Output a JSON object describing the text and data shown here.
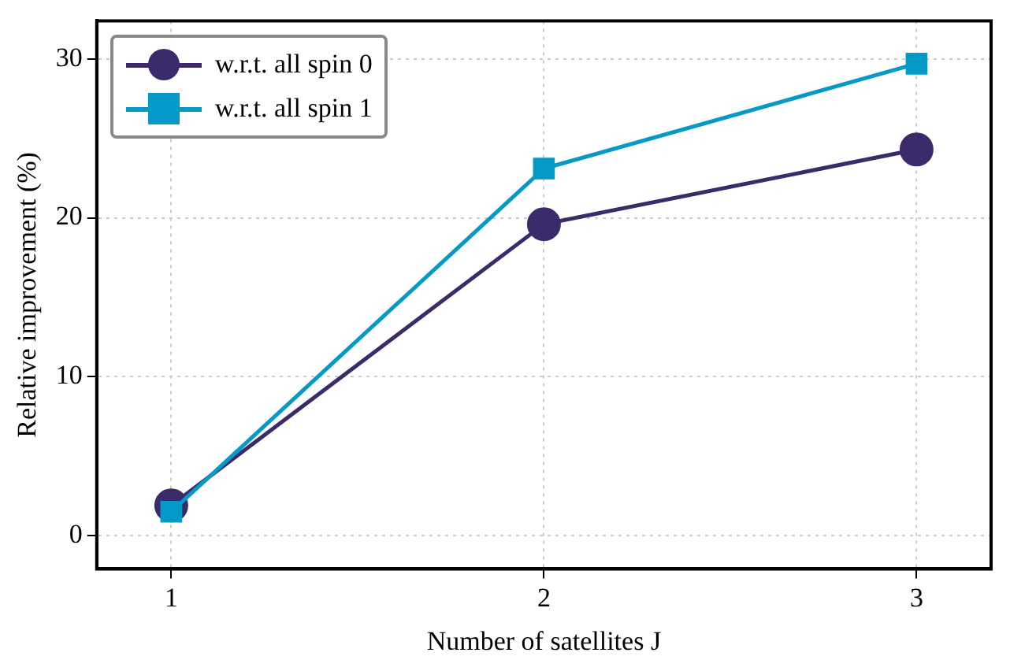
{
  "chart_data": {
    "type": "line",
    "xlabel": "Number of satellites J",
    "ylabel": "Relative improvement (%)",
    "x": [
      1,
      2,
      3
    ],
    "series": [
      {
        "name": "w.r.t. all spin 0",
        "color": "#3b2b6b",
        "marker": "circle",
        "values": [
          1.9,
          19.6,
          24.3
        ]
      },
      {
        "name": "w.r.t. all spin 1",
        "color": "#0499c6",
        "marker": "square",
        "values": [
          1.5,
          23.1,
          29.7
        ]
      }
    ],
    "xlim": [
      0.8,
      3.2
    ],
    "xticks": [
      1,
      2,
      3
    ],
    "ylim": [
      -2.1,
      32.4
    ],
    "yticks": [
      0,
      10,
      20,
      30
    ],
    "grid": true,
    "legend": "top left",
    "line_style": "solid"
  }
}
